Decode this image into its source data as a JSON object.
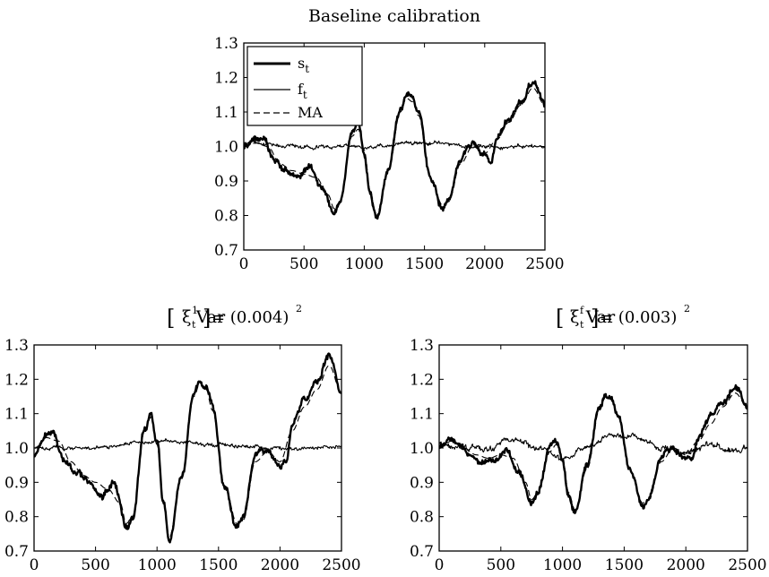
{
  "chart_data": [
    {
      "id": "top",
      "type": "line",
      "title": "Baseline calibration",
      "xlim": [
        0,
        2500
      ],
      "ylim": [
        0.7,
        1.3
      ],
      "xticks": [
        "0",
        "500",
        "1000",
        "1500",
        "2000",
        "2500"
      ],
      "yticks": [
        "0.7",
        "0.8",
        "0.9",
        "1.0",
        "1.1",
        "1.2",
        "1.3"
      ],
      "grid": false,
      "legend": {
        "placement": "top-left",
        "entries": [
          {
            "base": "s",
            "sub": "t"
          },
          {
            "base": "f",
            "sub": "t"
          },
          {
            "base": "MA",
            "sub": ""
          }
        ]
      },
      "series": [
        {
          "name": "s_t",
          "style": "thick",
          "noise": 0.01,
          "x": [
            0,
            100,
            150,
            250,
            350,
            450,
            550,
            650,
            750,
            800,
            900,
            950,
            1000,
            1050,
            1100,
            1200,
            1300,
            1350,
            1400,
            1450,
            1550,
            1650,
            1700,
            1800,
            1850,
            1900,
            2000,
            2050,
            2100,
            2200,
            2300,
            2400,
            2500
          ],
          "y": [
            1.0,
            1.02,
            1.03,
            0.96,
            0.93,
            0.91,
            0.94,
            0.88,
            0.81,
            0.84,
            1.04,
            1.06,
            0.98,
            0.86,
            0.79,
            0.94,
            1.11,
            1.15,
            1.14,
            1.1,
            0.91,
            0.82,
            0.84,
            0.96,
            1.0,
            1.01,
            0.98,
            0.95,
            1.02,
            1.08,
            1.13,
            1.19,
            1.12
          ]
        },
        {
          "name": "f_t",
          "style": "thin",
          "noise": 0.006,
          "x": [
            0,
            500,
            1000,
            1500,
            2000,
            2500
          ],
          "y": [
            1.01,
            1.0,
            1.0,
            1.01,
            1.0,
            1.0
          ]
        },
        {
          "name": "MA",
          "style": "dashed",
          "noise": 0,
          "x": [
            0,
            100,
            200,
            300,
            400,
            500,
            600,
            700,
            750,
            800,
            900,
            950,
            1000,
            1050,
            1100,
            1200,
            1300,
            1350,
            1400,
            1450,
            1550,
            1650,
            1700,
            1800,
            1900,
            2000,
            2100,
            2200,
            2300,
            2400,
            2500
          ],
          "y": [
            1.0,
            1.01,
            1.0,
            0.95,
            0.93,
            0.92,
            0.91,
            0.86,
            0.82,
            0.84,
            1.03,
            1.05,
            0.99,
            0.87,
            0.8,
            0.93,
            1.1,
            1.14,
            1.13,
            1.09,
            0.91,
            0.83,
            0.84,
            0.95,
            1.0,
            0.98,
            1.02,
            1.07,
            1.12,
            1.17,
            1.12
          ]
        }
      ]
    },
    {
      "id": "bottom-left",
      "type": "line",
      "title": {
        "prefix": "Var",
        "symbol": "ξ",
        "sup": "1",
        "sub": "t",
        "suffix": "= (0.004)",
        "power": "2"
      },
      "xlim": [
        0,
        2500
      ],
      "ylim": [
        0.7,
        1.3
      ],
      "xticks": [
        "0",
        "500",
        "1000",
        "1500",
        "2000",
        "2500"
      ],
      "yticks": [
        "0.7",
        "0.8",
        "0.9",
        "1.0",
        "1.1",
        "1.2",
        "1.3"
      ],
      "grid": false,
      "series": [
        {
          "name": "s_t",
          "style": "thick",
          "noise": 0.011,
          "x": [
            0,
            100,
            150,
            250,
            350,
            450,
            550,
            650,
            750,
            800,
            900,
            950,
            1000,
            1050,
            1100,
            1200,
            1300,
            1350,
            1400,
            1450,
            1550,
            1650,
            1700,
            1800,
            1850,
            1900,
            2000,
            2050,
            2100,
            2200,
            2300,
            2400,
            2500
          ],
          "y": [
            0.98,
            1.04,
            1.05,
            0.96,
            0.93,
            0.9,
            0.86,
            0.9,
            0.77,
            0.79,
            1.06,
            1.1,
            1.02,
            0.84,
            0.73,
            0.92,
            1.16,
            1.2,
            1.18,
            1.12,
            0.89,
            0.77,
            0.79,
            0.98,
            1.0,
            0.99,
            0.95,
            0.96,
            1.07,
            1.14,
            1.19,
            1.27,
            1.16
          ]
        },
        {
          "name": "f_t",
          "style": "thin",
          "noise": 0.006,
          "x": [
            0,
            500,
            1000,
            1500,
            2000,
            2500
          ],
          "y": [
            1.0,
            1.0,
            1.02,
            1.01,
            1.0,
            1.0
          ]
        },
        {
          "name": "MA",
          "style": "dashed",
          "noise": 0,
          "x": [
            0,
            100,
            200,
            300,
            400,
            500,
            600,
            700,
            750,
            800,
            900,
            950,
            1000,
            1050,
            1100,
            1200,
            1300,
            1350,
            1400,
            1450,
            1550,
            1650,
            1700,
            1800,
            1900,
            2000,
            2100,
            2200,
            2300,
            2400,
            2500
          ],
          "y": [
            0.98,
            1.03,
            1.02,
            0.96,
            0.92,
            0.9,
            0.88,
            0.84,
            0.78,
            0.8,
            1.05,
            1.09,
            1.01,
            0.85,
            0.74,
            0.91,
            1.15,
            1.19,
            1.17,
            1.11,
            0.89,
            0.78,
            0.79,
            0.96,
            0.99,
            0.96,
            1.05,
            1.12,
            1.17,
            1.24,
            1.16
          ]
        }
      ]
    },
    {
      "id": "bottom-right",
      "type": "line",
      "title": {
        "prefix": "Var",
        "symbol": "ξ",
        "sup": "f",
        "sub": "t",
        "suffix": "= (0.003)",
        "power": "2"
      },
      "xlim": [
        0,
        2500
      ],
      "ylim": [
        0.7,
        1.3
      ],
      "xticks": [
        "0",
        "500",
        "1000",
        "1500",
        "2000",
        "2500"
      ],
      "yticks": [
        "0.7",
        "0.8",
        "0.9",
        "1.0",
        "1.1",
        "1.2",
        "1.3"
      ],
      "grid": false,
      "series": [
        {
          "name": "s_t",
          "style": "thick",
          "noise": 0.01,
          "x": [
            0,
            100,
            150,
            250,
            350,
            450,
            550,
            650,
            750,
            800,
            900,
            950,
            1000,
            1050,
            1100,
            1200,
            1300,
            1350,
            1400,
            1450,
            1550,
            1650,
            1700,
            1800,
            1850,
            1900,
            2000,
            2050,
            2100,
            2200,
            2300,
            2400,
            2500
          ],
          "y": [
            1.0,
            1.03,
            1.02,
            0.98,
            0.96,
            0.97,
            0.99,
            0.93,
            0.84,
            0.87,
            1.0,
            1.02,
            0.96,
            0.86,
            0.81,
            0.95,
            1.12,
            1.16,
            1.15,
            1.1,
            0.93,
            0.83,
            0.85,
            0.97,
            1.0,
            1.0,
            0.97,
            0.97,
            1.03,
            1.09,
            1.13,
            1.18,
            1.12
          ]
        },
        {
          "name": "f_t",
          "style": "thin",
          "noise": 0.01,
          "x": [
            0,
            200,
            400,
            600,
            800,
            1000,
            1200,
            1400,
            1600,
            1800,
            2000,
            2200,
            2400,
            2500
          ],
          "y": [
            1.01,
            1.0,
            1.0,
            1.03,
            1.0,
            0.97,
            1.0,
            1.04,
            1.03,
            1.0,
            0.99,
            1.01,
            0.99,
            1.0
          ]
        },
        {
          "name": "MA",
          "style": "dashed",
          "noise": 0,
          "x": [
            0,
            100,
            200,
            300,
            400,
            500,
            600,
            700,
            750,
            800,
            900,
            950,
            1000,
            1050,
            1100,
            1200,
            1300,
            1350,
            1400,
            1450,
            1550,
            1650,
            1700,
            1800,
            1900,
            2000,
            2100,
            2200,
            2300,
            2400,
            2500
          ],
          "y": [
            1.0,
            1.02,
            1.0,
            0.98,
            0.97,
            0.98,
            0.97,
            0.9,
            0.85,
            0.87,
            0.99,
            1.01,
            0.97,
            0.87,
            0.82,
            0.94,
            1.11,
            1.15,
            1.14,
            1.09,
            0.93,
            0.84,
            0.85,
            0.96,
            1.0,
            0.98,
            1.02,
            1.07,
            1.12,
            1.16,
            1.12
          ]
        }
      ]
    }
  ]
}
